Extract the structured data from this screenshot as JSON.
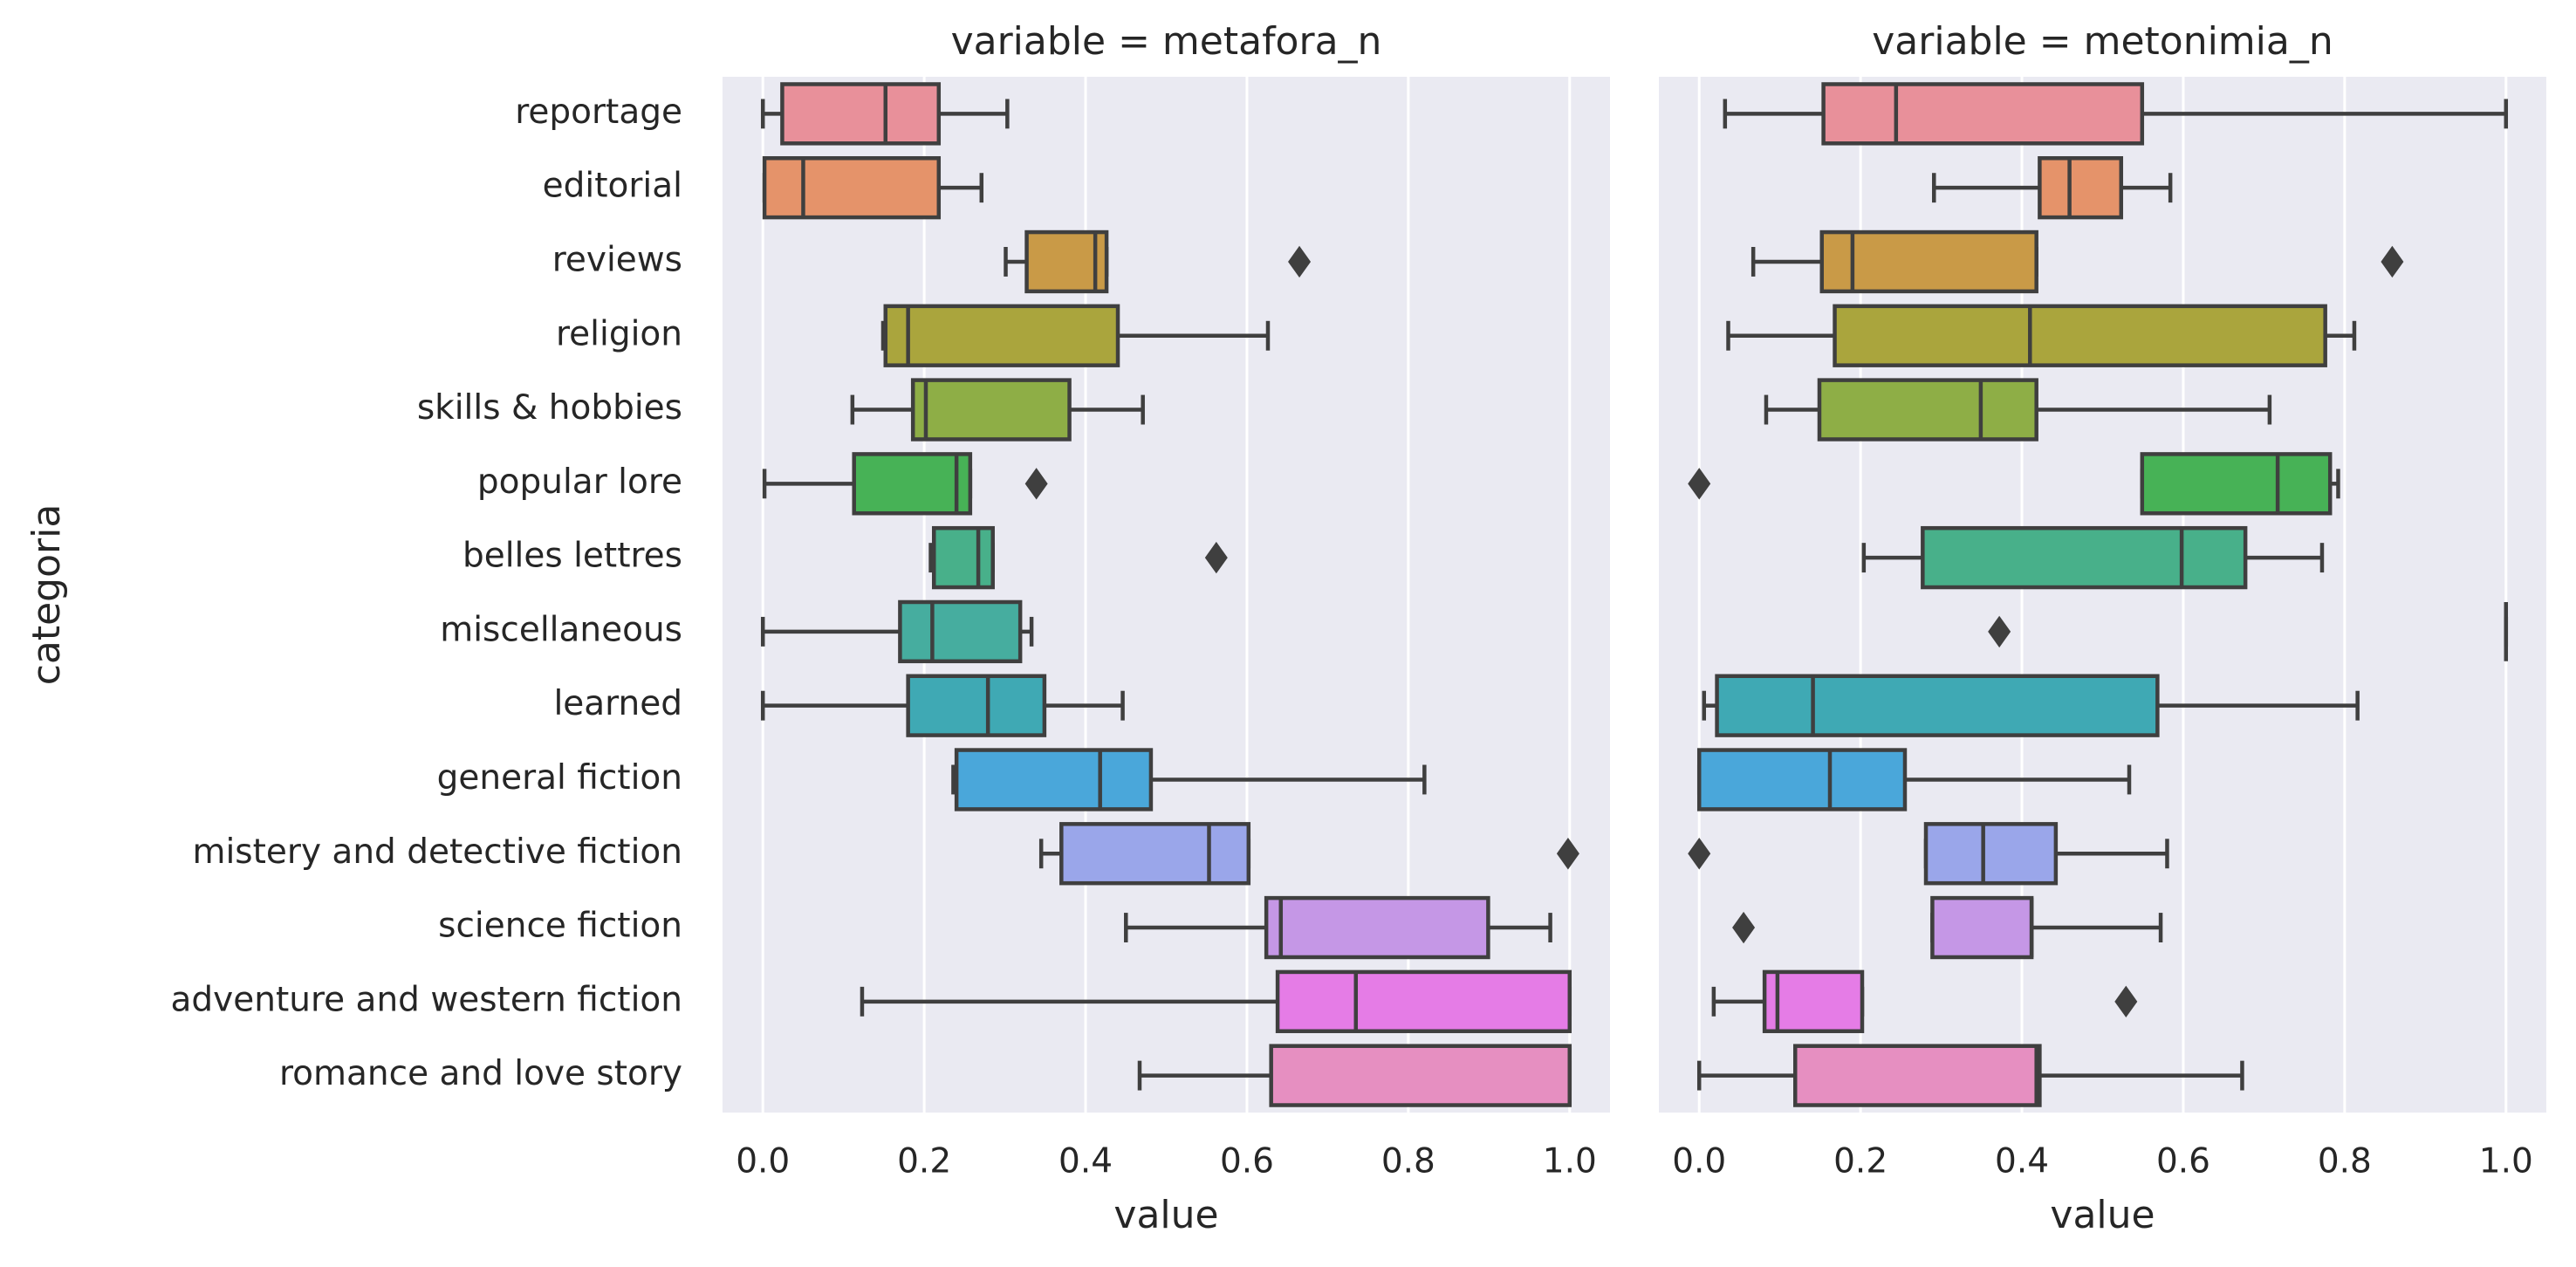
{
  "chart_data": [
    {
      "type": "box",
      "title": "variable = metafora_n",
      "xlabel": "value",
      "ylabel": "categoria",
      "categories": [
        "reportage",
        "editorial",
        "reviews",
        "religion",
        "skills & hobbies",
        "popular lore",
        "belles lettres",
        "miscellaneous",
        "learned",
        "general fiction",
        "mistery and detective fiction",
        "science fiction",
        "adventure and western fiction",
        "romance and love story"
      ],
      "colors": [
        "#e8909a",
        "#e5936a",
        "#c99a47",
        "#aaa53d",
        "#8eae46",
        "#47b256",
        "#48b08a",
        "#46ad9f",
        "#3fa9b4",
        "#4aa7da",
        "#9aa6ea",
        "#c597e6",
        "#e57ce6",
        "#e68fc1"
      ],
      "xlim": [
        -0.05,
        1.05
      ],
      "xticks": [
        {
          "value": 0,
          "label": "0.0"
        },
        0.2,
        0.4,
        0.6,
        0.8,
        {
          "value": 1,
          "label": "1.0"
        }
      ],
      "grid": true,
      "boxes": [
        {
          "whislo": 0.0,
          "q1": 0.024,
          "med": 0.152,
          "q3": 0.218,
          "whishi": 0.303
        },
        {
          "whislo": 0.002,
          "q1": 0.002,
          "med": 0.05,
          "q3": 0.218,
          "whishi": 0.271
        },
        {
          "whislo": 0.301,
          "q1": 0.327,
          "med": 0.412,
          "q3": 0.426,
          "whishi": 0.426,
          "fliers": [
            0.665
          ]
        },
        {
          "whislo": 0.149,
          "q1": 0.152,
          "med": 0.18,
          "q3": 0.44,
          "whishi": 0.626
        },
        {
          "whislo": 0.111,
          "q1": 0.186,
          "med": 0.202,
          "q3": 0.38,
          "whishi": 0.471
        },
        {
          "whislo": 0.002,
          "q1": 0.113,
          "med": 0.24,
          "q3": 0.257,
          "whishi": 0.257,
          "fliers": [
            0.339
          ]
        },
        {
          "whislo": 0.208,
          "q1": 0.212,
          "med": 0.267,
          "q3": 0.285,
          "whishi": 0.285,
          "fliers": [
            0.562
          ]
        },
        {
          "whislo": 0.0,
          "q1": 0.17,
          "med": 0.21,
          "q3": 0.319,
          "whishi": 0.333
        },
        {
          "whislo": 0.0,
          "q1": 0.18,
          "med": 0.279,
          "q3": 0.349,
          "whishi": 0.446
        },
        {
          "whislo": 0.236,
          "q1": 0.24,
          "med": 0.418,
          "q3": 0.481,
          "whishi": 0.82
        },
        {
          "whislo": 0.345,
          "q1": 0.37,
          "med": 0.553,
          "q3": 0.602,
          "whishi": 0.602,
          "fliers": [
            0.998
          ]
        },
        {
          "whislo": 0.45,
          "q1": 0.624,
          "med": 0.642,
          "q3": 0.899,
          "whishi": 0.976
        },
        {
          "whislo": 0.123,
          "q1": 0.638,
          "med": 0.735,
          "q3": 1.0,
          "whishi": 1.0
        },
        {
          "whislo": 0.467,
          "q1": 0.63,
          "med": 1.0,
          "q3": 1.0,
          "whishi": 1.0
        }
      ]
    },
    {
      "type": "box",
      "title": "variable = metonimia_n",
      "xlabel": "value",
      "xlim": [
        -0.05,
        1.05
      ],
      "xticks": [
        {
          "value": 0,
          "label": "0.0"
        },
        0.2,
        0.4,
        0.6,
        0.8,
        {
          "value": 1,
          "label": "1.0"
        }
      ],
      "grid": true,
      "boxes": [
        {
          "whislo": 0.032,
          "q1": 0.154,
          "med": 0.244,
          "q3": 0.549,
          "whishi": 1.0
        },
        {
          "whislo": 0.291,
          "q1": 0.422,
          "med": 0.459,
          "q3": 0.523,
          "whishi": 0.584
        },
        {
          "whislo": 0.067,
          "q1": 0.152,
          "med": 0.19,
          "q3": 0.418,
          "whishi": 0.418,
          "fliers": [
            0.859
          ]
        },
        {
          "whislo": 0.036,
          "q1": 0.168,
          "med": 0.41,
          "q3": 0.776,
          "whishi": 0.812
        },
        {
          "whislo": 0.083,
          "q1": 0.149,
          "med": 0.349,
          "q3": 0.418,
          "whishi": 0.707
        },
        {
          "whislo": 0.549,
          "q1": 0.549,
          "med": 0.717,
          "q3": 0.782,
          "whishi": 0.792,
          "fliers": [
            0.0
          ]
        },
        {
          "whislo": 0.204,
          "q1": 0.277,
          "med": 0.598,
          "q3": 0.677,
          "whishi": 0.772
        },
        {
          "whislo": 1.0,
          "q1": 1.0,
          "med": 1.0,
          "q3": 1.0,
          "whishi": 1.0,
          "fliers": [
            0.372
          ]
        },
        {
          "whislo": 0.006,
          "q1": 0.022,
          "med": 0.141,
          "q3": 0.568,
          "whishi": 0.816
        },
        {
          "whislo": 0.0,
          "q1": 0.0,
          "med": 0.162,
          "q3": 0.255,
          "whishi": 0.533
        },
        {
          "whislo": 0.281,
          "q1": 0.281,
          "med": 0.352,
          "q3": 0.442,
          "whishi": 0.58,
          "fliers": [
            0.0
          ]
        },
        {
          "whislo": 0.289,
          "q1": 0.289,
          "med": 0.412,
          "q3": 0.412,
          "whishi": 0.572,
          "fliers": [
            0.055
          ]
        },
        {
          "whislo": 0.018,
          "q1": 0.081,
          "med": 0.097,
          "q3": 0.202,
          "whishi": 0.202,
          "fliers": [
            0.529
          ]
        },
        {
          "whislo": 0.0,
          "q1": 0.119,
          "med": 0.418,
          "q3": 0.422,
          "whishi": 0.673
        }
      ]
    }
  ]
}
